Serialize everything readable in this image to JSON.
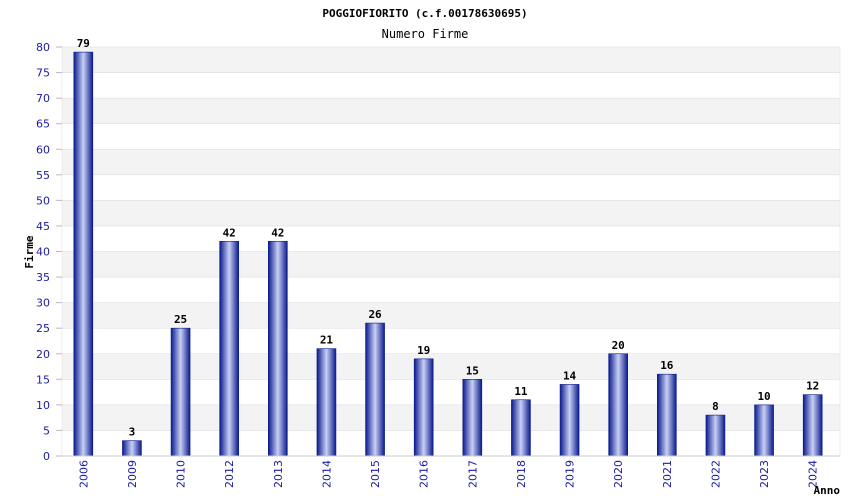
{
  "chart_data": {
    "type": "bar",
    "title": "POGGIOFIORITO (c.f.00178630695)",
    "subtitle": "Numero Firme",
    "xlabel": "Anno",
    "ylabel": "Firme",
    "ylim": [
      0,
      80
    ],
    "ytick_step": 5,
    "grid": "horizontal alternating bands",
    "categories": [
      "2006",
      "2009",
      "2010",
      "2012",
      "2013",
      "2014",
      "2015",
      "2016",
      "2017",
      "2018",
      "2019",
      "2020",
      "2021",
      "2022",
      "2023",
      "2024"
    ],
    "values": [
      79,
      3,
      25,
      42,
      42,
      21,
      26,
      19,
      15,
      11,
      14,
      20,
      16,
      8,
      10,
      12
    ],
    "colors": {
      "bar_dark": "#0a1a8c",
      "bar_light": "#c8d0f5",
      "band": "#f3f3f3",
      "tick_text": "#1a1aa6"
    }
  }
}
